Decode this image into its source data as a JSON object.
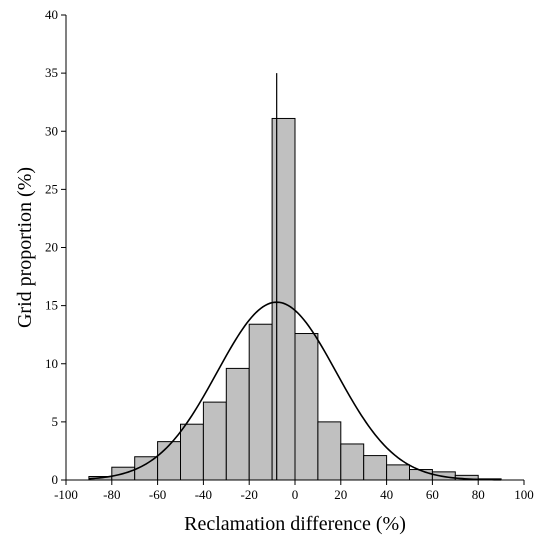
{
  "chart_data": {
    "type": "bar",
    "title": "",
    "xlabel": "Reclamation difference (%)",
    "ylabel": "Grid proportion (%)",
    "xlim": [
      -100,
      100
    ],
    "ylim": [
      0,
      40
    ],
    "xticks": [
      -100,
      -80,
      -60,
      -40,
      -20,
      0,
      20,
      40,
      60,
      80,
      100
    ],
    "yticks": [
      0,
      5,
      10,
      15,
      20,
      25,
      30,
      35,
      40
    ],
    "bins": [
      {
        "x0": -90,
        "x1": -80,
        "value": 0.3
      },
      {
        "x0": -80,
        "x1": -70,
        "value": 1.1
      },
      {
        "x0": -70,
        "x1": -60,
        "value": 2.0
      },
      {
        "x0": -60,
        "x1": -50,
        "value": 3.3
      },
      {
        "x0": -50,
        "x1": -40,
        "value": 4.8
      },
      {
        "x0": -40,
        "x1": -30,
        "value": 6.7
      },
      {
        "x0": -30,
        "x1": -20,
        "value": 9.6
      },
      {
        "x0": -20,
        "x1": -10,
        "value": 13.4
      },
      {
        "x0": -10,
        "x1": 0,
        "value": 31.1
      },
      {
        "x0": 0,
        "x1": 10,
        "value": 12.6
      },
      {
        "x0": 10,
        "x1": 20,
        "value": 5.0
      },
      {
        "x0": 20,
        "x1": 30,
        "value": 3.1
      },
      {
        "x0": 30,
        "x1": 40,
        "value": 2.1
      },
      {
        "x0": 40,
        "x1": 50,
        "value": 1.3
      },
      {
        "x0": 50,
        "x1": 60,
        "value": 0.9
      },
      {
        "x0": 60,
        "x1": 70,
        "value": 0.7
      },
      {
        "x0": 70,
        "x1": 80,
        "value": 0.4
      },
      {
        "x0": 80,
        "x1": 90,
        "value": 0.1
      }
    ],
    "fit_curve": {
      "type": "normal",
      "mean": -8,
      "sd": 26,
      "peak": 15.3
    },
    "reference_line": {
      "x": -8,
      "y_top": 35
    },
    "bar_color": "#c0c0c0",
    "grid": false,
    "legend": "none"
  }
}
